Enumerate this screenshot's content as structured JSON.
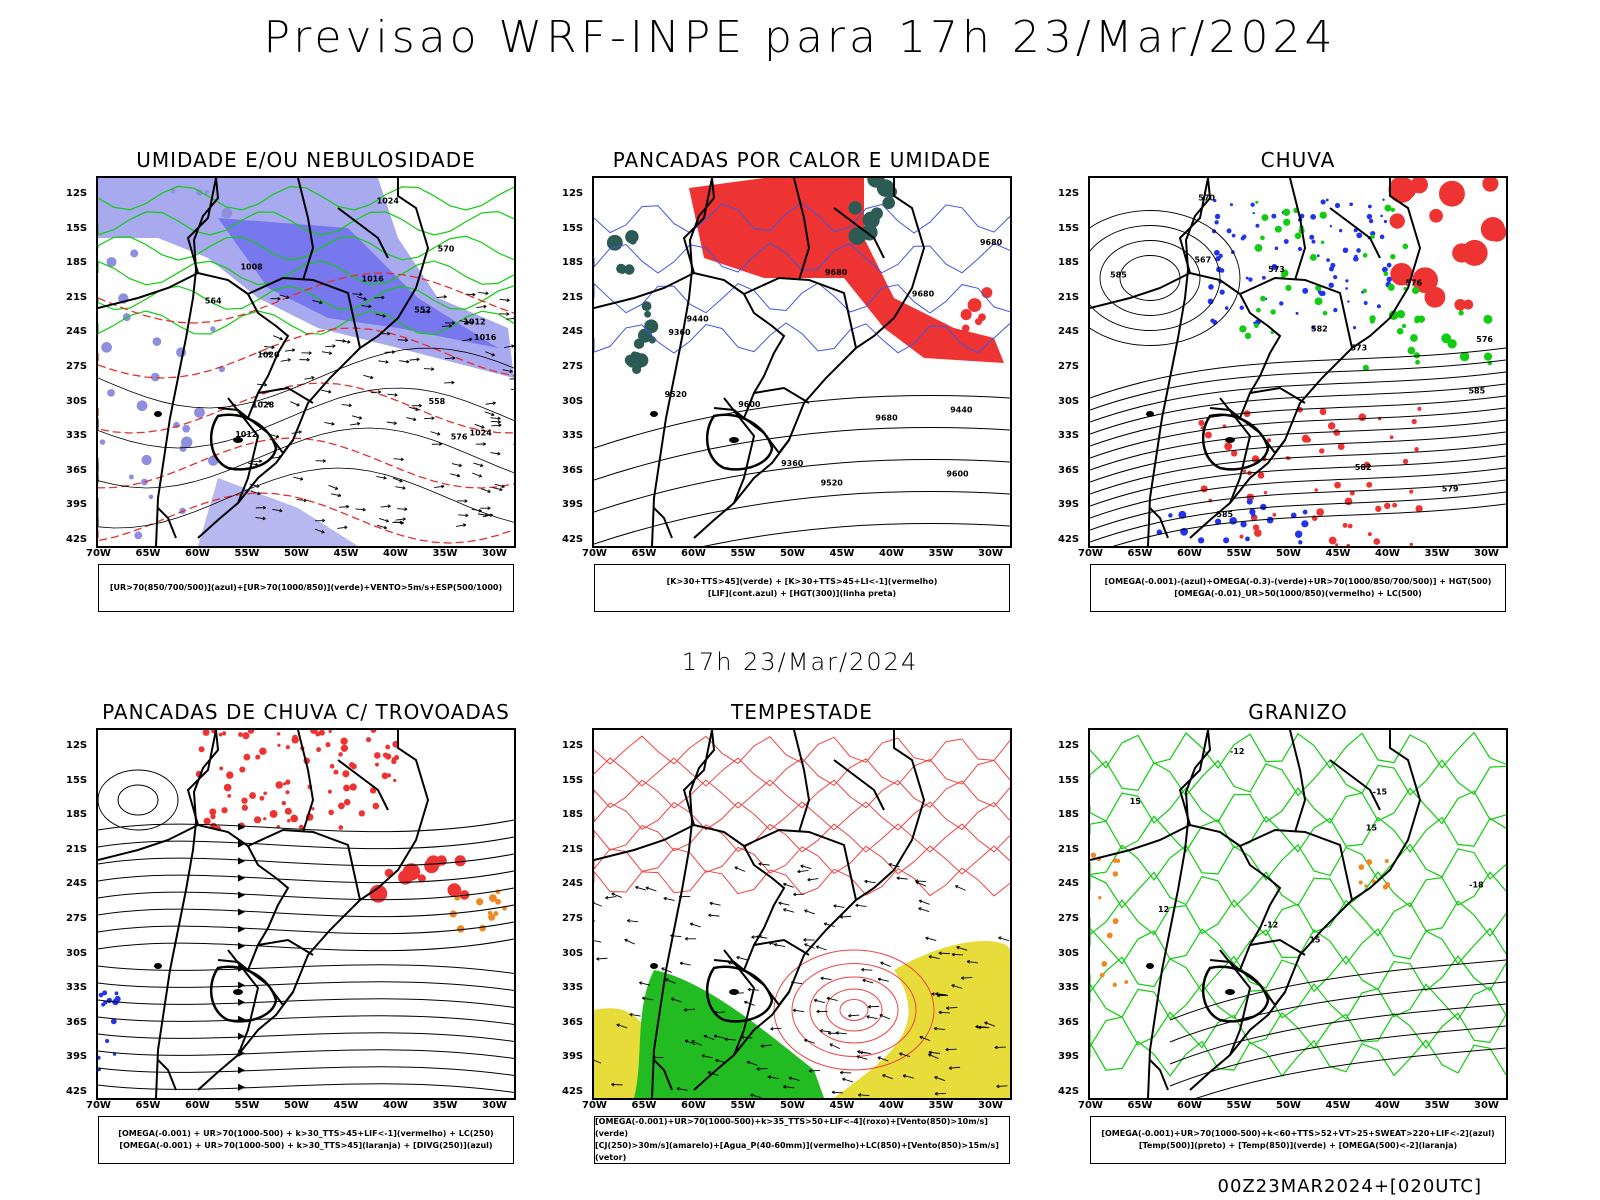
{
  "main_title": "Previsao WRF-INPE  para 17h 23/Mar/2024",
  "sub_title": "17h 23/Mar/2024",
  "footer": "00Z23MAR2024+[020UTC]",
  "lat_ticks": [
    "12S",
    "15S",
    "18S",
    "21S",
    "24S",
    "27S",
    "30S",
    "33S",
    "36S",
    "39S",
    "42S"
  ],
  "lon_ticks": [
    "70W",
    "65W",
    "60W",
    "55W",
    "50W",
    "45W",
    "40W",
    "35W",
    "30W"
  ],
  "colors": {
    "blue": "#7777ee",
    "green": "#11cc11",
    "red": "#ee3333",
    "yellow": "#e8dc3a",
    "teal": "#2c5a55",
    "orange": "#ee8822"
  },
  "panels": [
    {
      "title": "UMIDADE E/OU NEBULOSIDADE",
      "legend": [
        "[UR>70(850/700/500)](azul)+[UR>70(1000/850)](verde)+VENTO>5m/s+ESP(500/1000)"
      ],
      "labels": [
        "1008",
        "1012",
        "1016",
        "1016",
        "1020",
        "1024",
        "1028",
        "1024",
        "576",
        "570",
        "564",
        "558",
        "552",
        "1012"
      ]
    },
    {
      "title": "PANCADAS POR CALOR E UMIDADE",
      "legend": [
        "[K>30+TTS>45](verde) + [K>30+TTS>45+LI<-1](vermelho)",
        "[LIF](cont.azul) + [HGT(300)](linha preta)"
      ],
      "labels": [
        "9680",
        "9680",
        "9600",
        "9520",
        "9440",
        "9360",
        "9680",
        "9600",
        "9520",
        "9440",
        "9360",
        "9680"
      ]
    },
    {
      "title": "CHUVA",
      "legend": [
        "[OMEGA(-0.001)-(azul)+OMEGA(-0.3)-(verde)+UR>70(1000/850/700/500)] + HGT(500)",
        "[OMEGA(-0.01)_UR>50(1000/850)(vermelho) + LC(500)"
      ],
      "labels": [
        "585",
        "582",
        "576",
        "573",
        "567",
        "585",
        "582",
        "579",
        "576",
        "573",
        "585",
        "570"
      ]
    },
    {
      "title": "PANCADAS DE CHUVA C/ TROVOADAS",
      "legend": [
        "[OMEGA(-0.001) + UR>70(1000-500) + k>30_TTS>45+LIF<-1](vermelho) + LC(250)",
        "[OMEGA(-0.001) + UR>70(1000-500) + k>30_TTS>45](laranja) + [DIVG(250)](azul)"
      ],
      "labels": []
    },
    {
      "title": "TEMPESTADE",
      "legend": [
        "[OMEGA(-0.001)+UR>70(1000-500)+k>35_TTS>50+LIF<-4](roxo)+[Vento(850)>10m/s](verde)",
        "[CJ(250)>30m/s](amarelo)+[Agua_P(40-60mm)](vermelho)+LC(850)+[Vento(850)>15m/s](vetor)"
      ],
      "labels": []
    },
    {
      "title": "GRANIZO",
      "legend": [
        "[OMEGA(-0.001)+UR>70(1000-500)+k<60+TTS>52+VT>25+SWEAT>220+LIF<-2](azul)",
        "[Temp(500)](preto) + [Temp(850)](verde) + [OMEGA(500)<-2](laranja)"
      ],
      "labels": [
        "-12",
        "-15",
        "-18",
        "-12",
        "15",
        "12",
        "15",
        "15"
      ]
    }
  ]
}
